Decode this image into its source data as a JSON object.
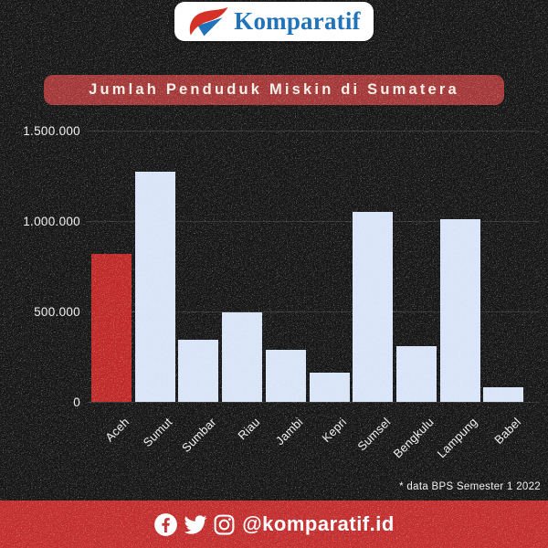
{
  "page": {
    "background_color": "#141414"
  },
  "logo": {
    "text": "Komparatif",
    "text_color": "#2173B9",
    "mark_red": "#D63127",
    "mark_blue": "#2173B9"
  },
  "title": {
    "text": "Jumlah Penduduk Miskin di Sumatera",
    "bg_color": "#A23535",
    "text_color": "#F5EFE8"
  },
  "chart_data": {
    "type": "bar",
    "title": "Jumlah Penduduk Miskin di Sumatera",
    "categories": [
      "Aceh",
      "Sumut",
      "Sumbar",
      "Riau",
      "Jambi",
      "Kepri",
      "Sumsel",
      "Bengkulu",
      "Lampung",
      "Babel"
    ],
    "values": [
      820000,
      1275000,
      345000,
      495000,
      290000,
      160000,
      1050000,
      310000,
      1010000,
      80000
    ],
    "xlabel": "",
    "ylabel": "",
    "ylim": [
      0,
      1500000
    ],
    "ytick_values": [
      1500000,
      1000000,
      500000,
      0
    ],
    "ytick_labels": [
      "1.500.000",
      "1.000.000",
      "500.000",
      "0"
    ],
    "grid": true,
    "legend": false,
    "bar_color": "#D8E4F8",
    "highlight_color": "#BF2725",
    "highlight_index": 0,
    "highlight_category": "Aceh"
  },
  "footnote": {
    "text": "* data BPS Semester 1 2022"
  },
  "footer": {
    "bg_color": "#C22B2B",
    "handle": "@komparatif.id",
    "text_color": "#FFFFFF",
    "icons": [
      "facebook-icon",
      "twitter-icon",
      "instagram-icon"
    ]
  }
}
